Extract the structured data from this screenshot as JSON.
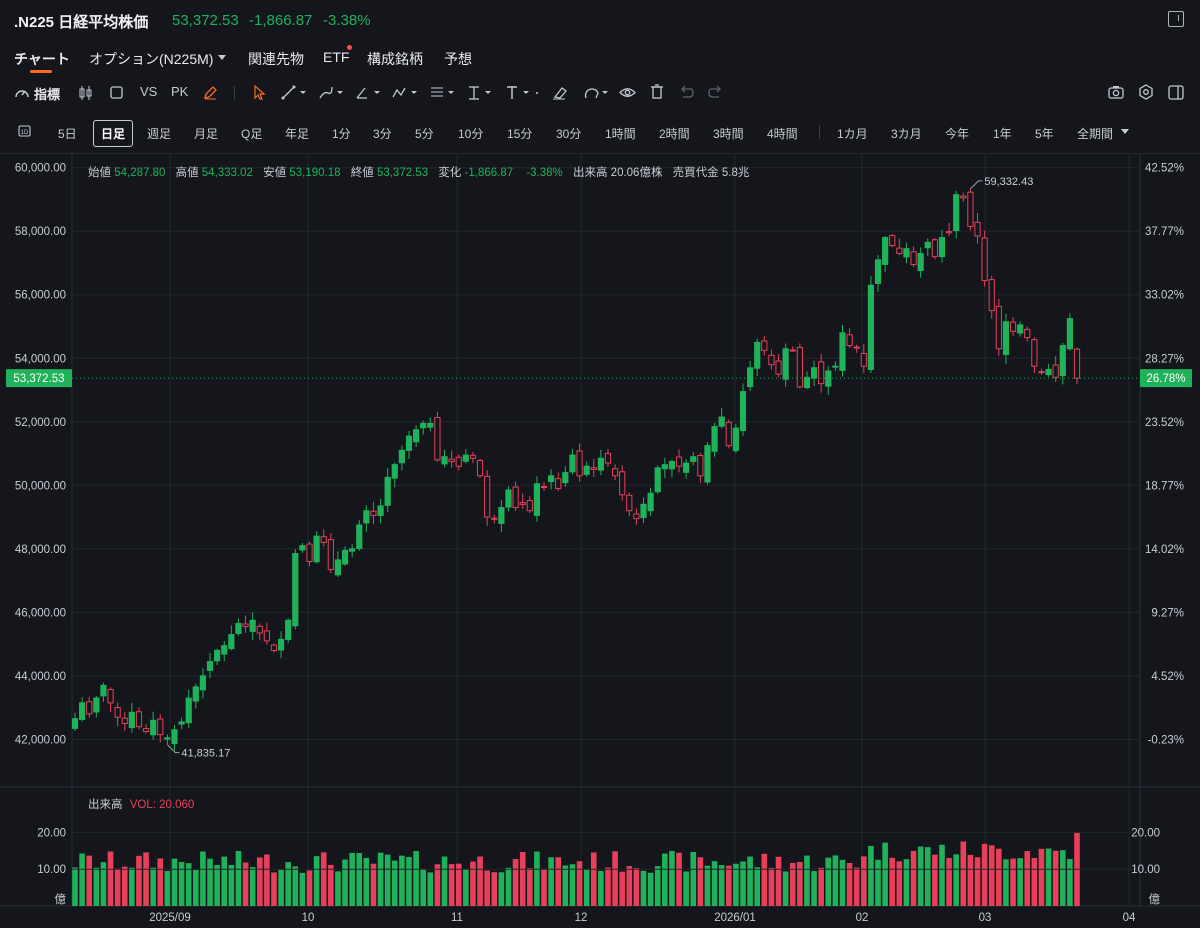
{
  "header": {
    "title": ".N225 日経平均株価",
    "price": "53,372.53",
    "change": "-1,866.87",
    "change_pct": "-3.38%"
  },
  "tabs": [
    {
      "label": "チャート"
    },
    {
      "label": "オプション(N225M)"
    },
    {
      "label": "関連先物"
    },
    {
      "label": "ETF"
    },
    {
      "label": "構成銘柄"
    },
    {
      "label": "予想"
    }
  ],
  "toolbar": {
    "indicators_label": "指標",
    "vs_label": "VS",
    "pk_label": "PK"
  },
  "periods": [
    "5日",
    "日足",
    "週足",
    "月足",
    "Q足",
    "年足",
    "1分",
    "3分",
    "5分",
    "10分",
    "15分",
    "30分",
    "1時間",
    "2時間",
    "3時間",
    "4時間",
    "1カ月",
    "3カ月",
    "今年",
    "1年",
    "5年",
    "全期間"
  ],
  "ohlc_bar": {
    "open_label": "始値",
    "open": "54,287.80",
    "high_label": "高値",
    "high": "54,333.02",
    "low_label": "安値",
    "low": "53,190.18",
    "close_label": "終値",
    "close": "53,372.53",
    "change_label": "変化",
    "change": "-1,866.87",
    "change_pct": "-3.38%",
    "volume_label": "出来高",
    "volume": "20.06億株",
    "turnover_label": "売買代金",
    "turnover": "5.8兆"
  },
  "volume_legend": {
    "label": "出来高",
    "value": "VOL: 20.060"
  },
  "colors": {
    "up": "#1fb25a",
    "down": "#e8405a",
    "accent": "#ff6a1a",
    "background": "#14161c"
  },
  "chart_data": {
    "type": "candlestick",
    "y_axis_left": [
      "60,000.00",
      "58,000.00",
      "56,000.00",
      "54,000.00",
      "52,000.00",
      "50,000.00",
      "48,000.00",
      "46,000.00",
      "44,000.00",
      "42,000.00"
    ],
    "y_axis_right": [
      "42.52%",
      "37.77%",
      "33.02%",
      "28.27%",
      "23.52%",
      "18.77%",
      "14.02%",
      "9.27%",
      "4.52%",
      "-0.23%"
    ],
    "ylim": [
      40500,
      60400
    ],
    "current_price_label": "53,372.53",
    "current_pct_label": "26.78%",
    "current_price": 53372.53,
    "max_label": "59,332.43",
    "max_value": 59332.43,
    "min_label": "41,835.17",
    "min_value": 41835.17,
    "x_labels": [
      "2025/09",
      "10",
      "11",
      "12",
      "2026/01",
      "02",
      "03",
      "04"
    ],
    "volume_axis_labels": [
      "20.00",
      "10.00",
      "億"
    ],
    "volume_ylim": [
      0,
      25
    ],
    "closes": [
      42650,
      43150,
      42800,
      43300,
      43700,
      43150,
      42700,
      42500,
      42850,
      42400,
      42250,
      42600,
      42150,
      42050,
      42300,
      42550,
      43300,
      43650,
      44000,
      44450,
      44800,
      44950,
      45300,
      45650,
      45550,
      45750,
      45350,
      45100,
      44800,
      45150,
      45750,
      47850,
      48100,
      47600,
      48400,
      48200,
      47350,
      47650,
      47950,
      48000,
      48750,
      49200,
      49050,
      49350,
      50250,
      50650,
      51100,
      51550,
      51750,
      51950,
      51950,
      50800,
      50900,
      50750,
      50600,
      50950,
      50850,
      50300,
      49000,
      48950,
      49300,
      49850,
      49300,
      49400,
      49200,
      50050,
      49950,
      50300,
      49900,
      50400,
      50950,
      50300,
      50600,
      50500,
      50850,
      50700,
      50300,
      49700,
      49200,
      48950,
      49400,
      49750,
      50550,
      50650,
      50750,
      50600,
      50700,
      50900,
      50300,
      51250,
      51850,
      52150,
      51250,
      51800,
      52950,
      53700,
      54500,
      54250,
      53800,
      53500,
      54300,
      54250,
      53100,
      53400,
      53700,
      53200,
      53600,
      53750,
      54800,
      54400,
      54350,
      53750,
      56300,
      57100,
      57800,
      57550,
      57300,
      57450,
      56950,
      57300,
      57650,
      57200,
      57800,
      57950,
      59150,
      59050,
      58150,
      57850,
      56450,
      55500,
      54300,
      55150,
      54850,
      55050,
      54650,
      53750,
      53550,
      53650,
      53400,
      54400,
      55250,
      53372
    ]
  }
}
